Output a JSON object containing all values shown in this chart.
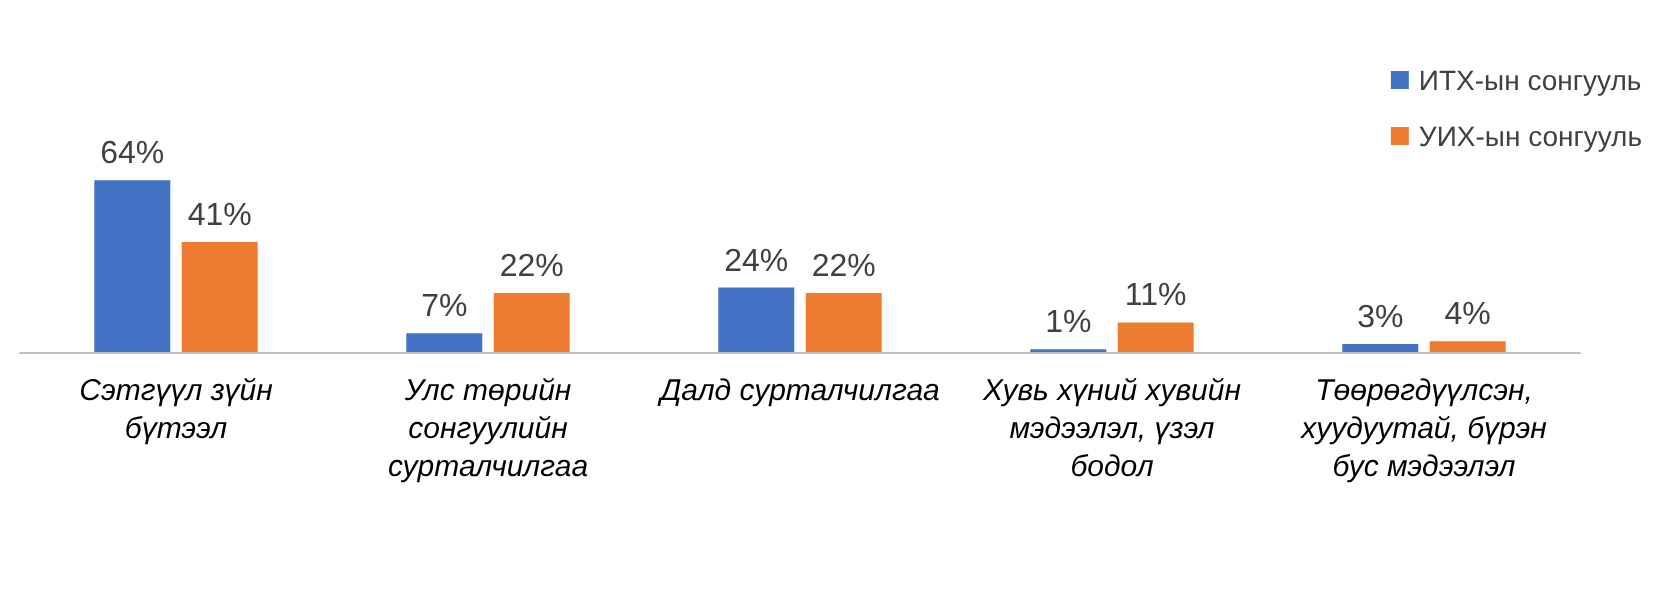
{
  "chart_data": {
    "type": "bar",
    "categories": [
      "Сэтгүүл зүйн бүтээл",
      "Улс төрийн сонгуулийн сурталчилгаа",
      "Далд сурталчилгаа",
      "Хувь хүний хувийн мэдээлэл, үзэл бодол",
      "Төөрөгдүүлсэн, хуудуутай, бүрэн бус мэдээлэл"
    ],
    "series": [
      {
        "name": "ИТХ-ын сонгууль",
        "color": "#4472c4",
        "values": [
          64,
          7,
          24,
          1,
          3
        ],
        "value_labels": [
          "64%",
          "7%",
          "24%",
          "1%",
          "3%"
        ]
      },
      {
        "name": "УИХ-ын сонгууль",
        "color": "#ed7d31",
        "values": [
          41,
          22,
          22,
          11,
          4
        ],
        "value_labels": [
          "41%",
          "22%",
          "22%",
          "11%",
          "4%"
        ]
      }
    ],
    "legend": "top right"
  }
}
